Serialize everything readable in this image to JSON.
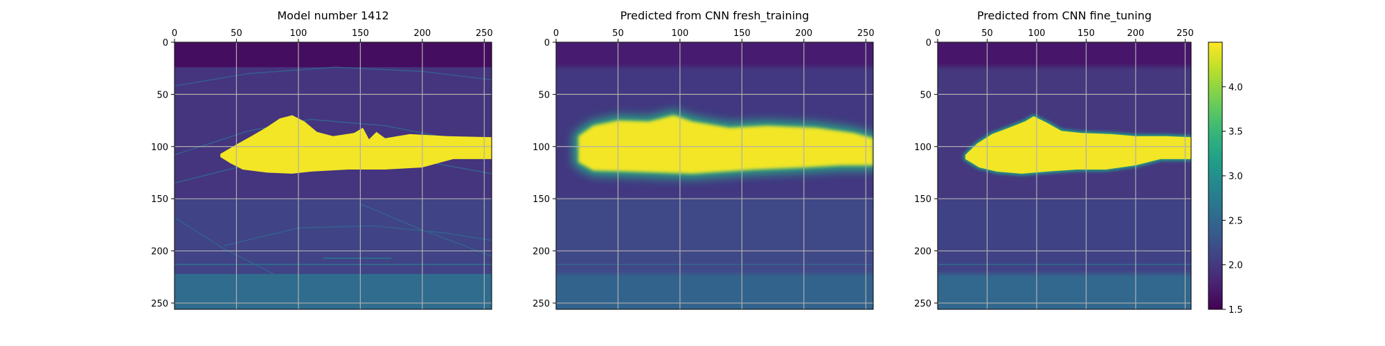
{
  "figure": {
    "background": "#ffffff"
  },
  "chart_data": [
    {
      "type": "heatmap",
      "title": "Model number 1412",
      "xlim": [
        0,
        256
      ],
      "ylim": [
        256,
        0
      ],
      "xticks": [
        0,
        50,
        100,
        150,
        200,
        250
      ],
      "yticks": [
        0,
        50,
        100,
        150,
        200,
        250
      ],
      "xaxis_position": "top",
      "grid": true,
      "colormap": "viridis",
      "style": "sharp",
      "layers": [
        {
          "y_range": [
            0,
            24
          ],
          "value": 1.6
        },
        {
          "y_range": [
            24,
            150
          ],
          "value": 1.95
        },
        {
          "y_range": [
            150,
            222
          ],
          "value": 2.1
        },
        {
          "y_range": [
            222,
            256
          ],
          "value": 2.55
        }
      ],
      "lines": [
        {
          "points": [
            [
              0,
              42
            ],
            [
              60,
              30
            ],
            [
              130,
              24
            ],
            [
              200,
              28
            ],
            [
              256,
              36
            ]
          ],
          "value": 2.35
        },
        {
          "points": [
            [
              0,
              108
            ],
            [
              60,
              85
            ],
            [
              110,
              74
            ],
            [
              170,
              80
            ],
            [
              256,
              100
            ]
          ],
          "value": 2.4
        },
        {
          "points": [
            [
              0,
              135
            ],
            [
              60,
              117
            ],
            [
              130,
              110
            ],
            [
              200,
              114
            ],
            [
              256,
              126
            ]
          ],
          "value": 2.4
        },
        {
          "points": [
            [
              40,
              195
            ],
            [
              100,
              178
            ],
            [
              160,
              176
            ],
            [
              220,
              183
            ],
            [
              256,
              190
            ]
          ],
          "value": 2.4
        },
        {
          "points": [
            [
              0,
              168
            ],
            [
              40,
              198
            ],
            [
              80,
              222
            ]
          ],
          "value": 2.4
        },
        {
          "points": [
            [
              150,
              155
            ],
            [
              200,
              180
            ],
            [
              256,
              205
            ]
          ],
          "value": 2.4
        },
        {
          "points": [
            [
              120,
              207
            ],
            [
              175,
              207
            ]
          ],
          "value": 2.7
        },
        {
          "points": [
            [
              0,
              213
            ],
            [
              256,
              213
            ]
          ],
          "value": 2.6
        }
      ],
      "body": {
        "value": 4.45,
        "top": [
          [
            37,
            107
          ],
          [
            50,
            98
          ],
          [
            62,
            90
          ],
          [
            75,
            81
          ],
          [
            85,
            73
          ],
          [
            95,
            70
          ],
          [
            105,
            76
          ],
          [
            115,
            86
          ],
          [
            128,
            90
          ],
          [
            145,
            87
          ],
          [
            152,
            82
          ],
          [
            157,
            93
          ],
          [
            163,
            86
          ],
          [
            170,
            92
          ],
          [
            190,
            88
          ],
          [
            220,
            90
          ],
          [
            256,
            91
          ]
        ],
        "bottom": [
          [
            256,
            112
          ],
          [
            225,
            112
          ],
          [
            200,
            120
          ],
          [
            170,
            122
          ],
          [
            140,
            122
          ],
          [
            110,
            124
          ],
          [
            95,
            126
          ],
          [
            75,
            125
          ],
          [
            55,
            122
          ],
          [
            45,
            116
          ],
          [
            37,
            110
          ]
        ]
      }
    },
    {
      "type": "heatmap",
      "title": "Predicted from CNN fresh_training",
      "xlim": [
        0,
        256
      ],
      "ylim": [
        256,
        0
      ],
      "xticks": [
        0,
        50,
        100,
        150,
        200,
        250
      ],
      "yticks": [
        0,
        50,
        100,
        150,
        200,
        250
      ],
      "xaxis_position": "top",
      "grid": true,
      "colormap": "viridis",
      "style": "smooth",
      "layers": [
        {
          "y_range": [
            0,
            24
          ],
          "value": 1.75
        },
        {
          "y_range": [
            24,
            150
          ],
          "value": 2.0
        },
        {
          "y_range": [
            150,
            222
          ],
          "value": 2.15
        },
        {
          "y_range": [
            222,
            256
          ],
          "value": 2.45
        }
      ],
      "lines": [
        {
          "points": [
            [
              0,
              213
            ],
            [
              256,
              213
            ]
          ],
          "value": 2.45
        }
      ],
      "body": {
        "value": 4.45,
        "top": [
          [
            18,
            90
          ],
          [
            30,
            80
          ],
          [
            50,
            75
          ],
          [
            75,
            76
          ],
          [
            95,
            70
          ],
          [
            110,
            76
          ],
          [
            140,
            82
          ],
          [
            170,
            80
          ],
          [
            210,
            82
          ],
          [
            240,
            87
          ],
          [
            256,
            92
          ]
        ],
        "bottom": [
          [
            256,
            118
          ],
          [
            230,
            118
          ],
          [
            200,
            120
          ],
          [
            160,
            122
          ],
          [
            110,
            126
          ],
          [
            60,
            124
          ],
          [
            30,
            123
          ],
          [
            18,
            115
          ]
        ]
      }
    },
    {
      "type": "heatmap",
      "title": "Predicted from CNN fine_tuning",
      "xlim": [
        0,
        256
      ],
      "ylim": [
        256,
        0
      ],
      "xticks": [
        0,
        50,
        100,
        150,
        200,
        250
      ],
      "yticks": [
        0,
        50,
        100,
        150,
        200,
        250
      ],
      "xaxis_position": "top",
      "grid": true,
      "colormap": "viridis",
      "style": "soft",
      "layers": [
        {
          "y_range": [
            0,
            24
          ],
          "value": 1.7
        },
        {
          "y_range": [
            24,
            150
          ],
          "value": 1.98
        },
        {
          "y_range": [
            150,
            222
          ],
          "value": 2.1
        },
        {
          "y_range": [
            222,
            256
          ],
          "value": 2.5
        }
      ],
      "lines": [
        {
          "points": [
            [
              0,
              213
            ],
            [
              256,
              213
            ]
          ],
          "value": 2.5
        }
      ],
      "body": {
        "value": 4.45,
        "top": [
          [
            28,
            108
          ],
          [
            40,
            97
          ],
          [
            55,
            88
          ],
          [
            72,
            82
          ],
          [
            88,
            76
          ],
          [
            97,
            71
          ],
          [
            110,
            77
          ],
          [
            125,
            85
          ],
          [
            145,
            87
          ],
          [
            175,
            88
          ],
          [
            200,
            90
          ],
          [
            230,
            90
          ],
          [
            256,
            91
          ]
        ],
        "bottom": [
          [
            256,
            112
          ],
          [
            225,
            112
          ],
          [
            200,
            118
          ],
          [
            170,
            122
          ],
          [
            140,
            122
          ],
          [
            110,
            124
          ],
          [
            85,
            126
          ],
          [
            60,
            124
          ],
          [
            42,
            120
          ],
          [
            28,
            112
          ]
        ]
      }
    }
  ],
  "colorbar": {
    "colormap": "viridis",
    "range": [
      1.5,
      4.5
    ],
    "ticks": [
      1.5,
      2.0,
      2.5,
      3.0,
      3.5,
      4.0
    ],
    "tick_labels": [
      "1.5",
      "2.0",
      "2.5",
      "3.0",
      "3.5",
      "4.0"
    ]
  }
}
